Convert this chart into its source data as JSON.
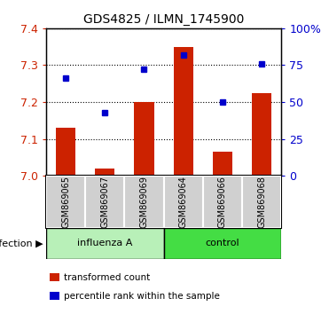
{
  "title": "GDS4825 / ILMN_1745900",
  "samples": [
    "GSM869065",
    "GSM869067",
    "GSM869069",
    "GSM869064",
    "GSM869066",
    "GSM869068"
  ],
  "bar_values": [
    7.13,
    7.02,
    7.2,
    7.35,
    7.065,
    7.225
  ],
  "dot_values": [
    66,
    43,
    72,
    82,
    50,
    76
  ],
  "ylim_left": [
    7.0,
    7.4
  ],
  "ylim_right": [
    0,
    100
  ],
  "yticks_left": [
    7.0,
    7.1,
    7.2,
    7.3,
    7.4
  ],
  "yticks_right": [
    0,
    25,
    50,
    75,
    100
  ],
  "yticklabels_right": [
    "0",
    "25",
    "50",
    "75",
    "100%"
  ],
  "bar_color": "#cc2200",
  "dot_color": "#0000cc",
  "legend_bar": "transformed count",
  "legend_dot": "percentile rank within the sample",
  "bar_base": 7.0,
  "influenza_color_light": "#b8f0b8",
  "influenza_color_dark": "#44dd44",
  "control_color_light": "#44dd44",
  "control_color_dark": "#00bb00",
  "sample_label_bg": "#d0d0d0",
  "white": "#ffffff"
}
